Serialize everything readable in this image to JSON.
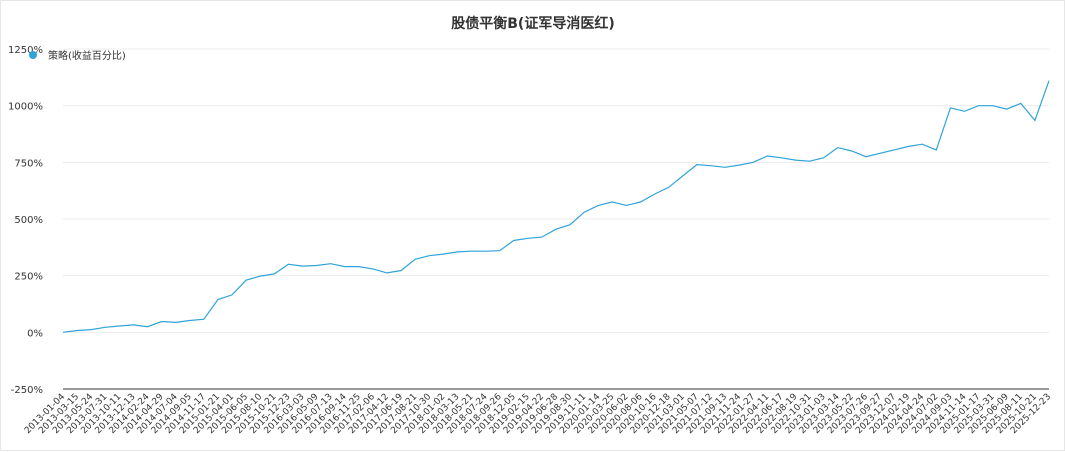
{
  "chart_data": {
    "type": "line",
    "title": "股债平衡B(证军导消医红)",
    "xlabel": "",
    "ylabel": "",
    "ylim": [
      -250,
      1250
    ],
    "y_ticks": [
      "1250%",
      "1000%",
      "750%",
      "500%",
      "250%",
      "0%",
      "-250%"
    ],
    "y_tick_values": [
      1250,
      1000,
      750,
      500,
      250,
      0,
      -250
    ],
    "grid": "horizontal",
    "legend": {
      "position": "top-left",
      "entries": [
        "策略(收益百分比)"
      ]
    },
    "series": [
      {
        "name": "策略(收益百分比)",
        "color": "#2fa4d8",
        "x": [
          "2013-01-04",
          "2013-03-15",
          "2013-05-24",
          "2013-07-31",
          "2013-10-11",
          "2013-12-13",
          "2014-02-24",
          "2014-04-29",
          "2014-07-04",
          "2014-09-05",
          "2014-11-17",
          "2015-01-21",
          "2015-04-01",
          "2015-06-05",
          "2015-08-10",
          "2015-10-21",
          "2015-12-23",
          "2016-03-03",
          "2016-05-09",
          "2016-07-13",
          "2016-09-14",
          "2016-11-25",
          "2017-02-06",
          "2017-04-12",
          "2017-06-19",
          "2017-08-21",
          "2017-10-30",
          "2018-01-02",
          "2018-03-13",
          "2018-05-21",
          "2018-07-24",
          "2018-09-26",
          "2018-12-05",
          "2019-02-15",
          "2019-04-22",
          "2019-06-28",
          "2019-08-30",
          "2019-11-11",
          "2020-01-14",
          "2020-03-25",
          "2020-06-02",
          "2020-08-06",
          "2020-10-16",
          "2020-12-18",
          "2021-03-01",
          "2021-05-07",
          "2021-07-12",
          "2021-09-13",
          "2021-11-24",
          "2022-01-27",
          "2022-04-11",
          "2022-06-17",
          "2022-08-19",
          "2022-10-31",
          "2023-01-03",
          "2023-03-14",
          "2023-05-22",
          "2023-07-26",
          "2023-09-27",
          "2023-12-07",
          "2024-02-19",
          "2024-04-24",
          "2024-07-02",
          "2024-09-03",
          "2024-11-14",
          "2025-01-17",
          "2025-03-31",
          "2025-06-09",
          "2025-08-11",
          "2025-10-21",
          "2025-12-23"
        ],
        "values": [
          0,
          8,
          12,
          22,
          28,
          33,
          25,
          48,
          44,
          52,
          58,
          145,
          165,
          230,
          248,
          258,
          300,
          292,
          295,
          303,
          290,
          290,
          280,
          262,
          273,
          322,
          338,
          345,
          355,
          358,
          358,
          360,
          405,
          415,
          420,
          455,
          475,
          530,
          560,
          575,
          560,
          575,
          610,
          640,
          690,
          740,
          735,
          728,
          738,
          750,
          778,
          770,
          760,
          755,
          770,
          815,
          800,
          775,
          790,
          805,
          820,
          830,
          805,
          990,
          975,
          1000,
          1000,
          985,
          1010,
          935,
          1110
        ]
      }
    ]
  }
}
